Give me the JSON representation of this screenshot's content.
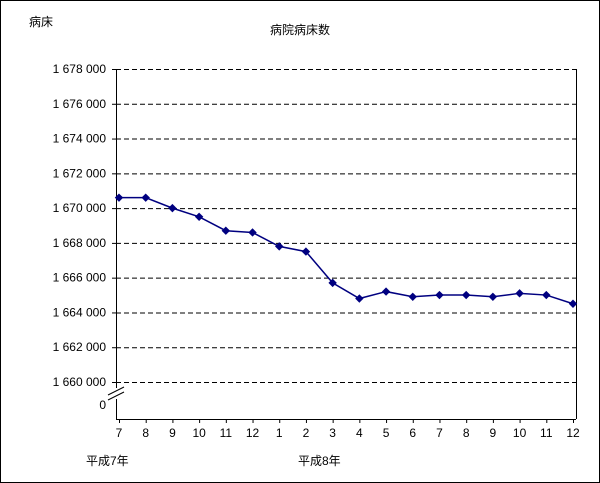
{
  "chart_data": {
    "type": "line",
    "title": "病院病床数",
    "ylabel": "病床",
    "x_axis": {
      "month_labels": [
        "7",
        "8",
        "9",
        "10",
        "11",
        "12",
        "1",
        "2",
        "3",
        "4",
        "5",
        "6",
        "7",
        "8",
        "9",
        "10",
        "11",
        "12"
      ],
      "era_labels": [
        {
          "label": "平成7年",
          "month_index": 0
        },
        {
          "label": "平成8年",
          "month_index": 6
        }
      ]
    },
    "y_axis": {
      "min": 1660000,
      "max": 1678000,
      "step": 2000,
      "tick_labels": [
        "1 678 000",
        "1 676 000",
        "1 674 000",
        "1 672 000",
        "1 670 000",
        "1 668 000",
        "1 666 000",
        "1 664 000",
        "1 662 000",
        "1 660 000"
      ],
      "origin_label": "0",
      "axis_break": true
    },
    "grid": {
      "horizontal": true,
      "style": "dashed"
    },
    "legend": "none",
    "series": [
      {
        "name": "病院病床数",
        "color": "#000080",
        "marker": "diamond",
        "values": [
          1670600,
          1670600,
          1670000,
          1669500,
          1668700,
          1668600,
          1667800,
          1667500,
          1665700,
          1664800,
          1665200,
          1664900,
          1665000,
          1665000,
          1664900,
          1665100,
          1665000,
          1664500
        ]
      }
    ]
  }
}
